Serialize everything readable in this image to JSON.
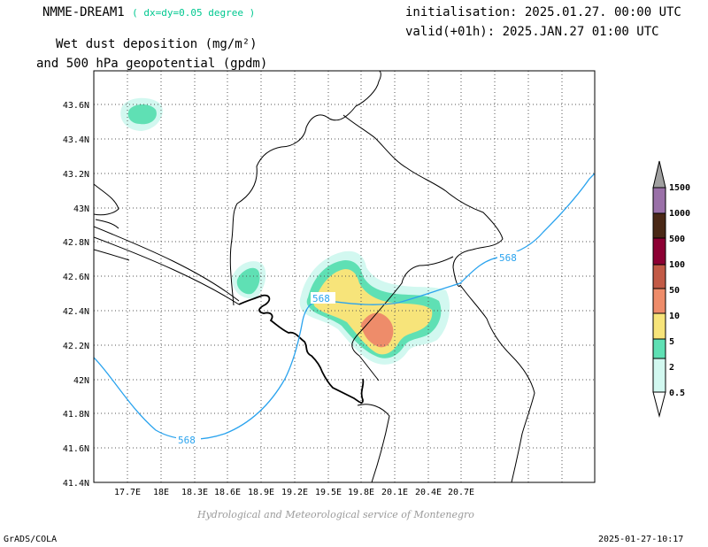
{
  "header": {
    "model": "NMME-DREAM1",
    "resolution": "( dx=dy=0.05 degree )",
    "title_line1": "Wet dust deposition (mg/m²)",
    "title_line2": "and 500 hPa geopotential (gpdm)",
    "initialisation": "initialisation: 2025.01.27. 00:00 UTC",
    "valid": "valid(+01h): 2025.JAN.27 01:00 UTC"
  },
  "footer": {
    "credit": "Hydrological and Meteorological service of Montenegro",
    "software": "GrADS/COLA",
    "timestamp": "2025-01-27-10:17"
  },
  "map": {
    "lon_labels": [
      "17.7E",
      "18E",
      "18.3E",
      "18.6E",
      "18.9E",
      "19.2E",
      "19.5E",
      "19.8E",
      "20.1E",
      "20.4E",
      "20.7E"
    ],
    "lat_labels": [
      "43.6N",
      "43.4N",
      "43.2N",
      "43N",
      "42.8N",
      "42.6N",
      "42.4N",
      "42.2N",
      "42N",
      "41.8N",
      "41.6N",
      "41.4N"
    ],
    "contour_labels": [
      "568",
      "568",
      "568"
    ],
    "colors": {
      "contour": "#2aa3ee",
      "levels": [
        "#d2f8f0",
        "#5fe0b4",
        "#f7e47a",
        "#ee8c6a",
        "#c25a46",
        "#8c0033",
        "#4a2816",
        "#9a70a8",
        "#a0a0a0"
      ]
    }
  },
  "legend": {
    "levels": [
      "0.5",
      "2",
      "5",
      "10",
      "50",
      "100",
      "500",
      "1000",
      "1500"
    ],
    "colors": [
      "#d2f8f0",
      "#5fe0b4",
      "#f7e47a",
      "#ee8c6a",
      "#c25a46",
      "#8c0033",
      "#4a2816",
      "#9a70a8",
      "#a0a0a0"
    ]
  }
}
